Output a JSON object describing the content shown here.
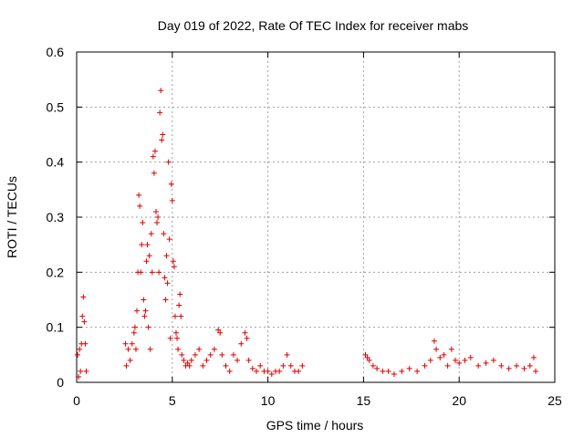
{
  "chart_data": {
    "type": "scatter",
    "title": "Day 019 of 2022, Rate Of TEC Index for receiver mabs",
    "xlabel": "GPS time / hours",
    "ylabel": "ROTI / TECUs",
    "xlim": [
      0,
      25
    ],
    "ylim": [
      0,
      0.6
    ],
    "xticks": [
      0,
      5,
      10,
      15,
      20,
      25
    ],
    "yticks": [
      0,
      0.1,
      0.2,
      0.3,
      0.4,
      0.5,
      0.6
    ],
    "xtick_labels": [
      "0",
      "5",
      "10",
      "15",
      "20",
      "25"
    ],
    "ytick_labels": [
      "0",
      "0.1",
      "0.2",
      "0.3",
      "0.4",
      "0.5",
      "0.6"
    ],
    "grid": true,
    "marker": "+",
    "color": "#e00000",
    "series": [
      {
        "name": "ROTI",
        "x": [
          0.05,
          0.1,
          0.15,
          0.2,
          0.25,
          0.3,
          0.35,
          0.4,
          0.45,
          0.5,
          2.55,
          2.6,
          2.7,
          2.8,
          2.9,
          3.0,
          3.05,
          3.1,
          3.15,
          3.2,
          3.25,
          3.3,
          3.35,
          3.4,
          3.45,
          3.5,
          3.55,
          3.6,
          3.65,
          3.7,
          3.75,
          3.8,
          3.85,
          3.9,
          3.95,
          4.0,
          4.05,
          4.1,
          4.15,
          4.2,
          4.25,
          4.3,
          4.35,
          4.4,
          4.45,
          4.5,
          4.55,
          4.6,
          4.65,
          4.7,
          4.75,
          4.8,
          4.85,
          4.9,
          4.95,
          5.0,
          5.05,
          5.1,
          5.15,
          5.2,
          5.25,
          5.3,
          5.35,
          5.4,
          5.45,
          5.5,
          5.6,
          5.7,
          5.8,
          5.9,
          6.0,
          6.2,
          6.4,
          6.6,
          6.8,
          7.0,
          7.2,
          7.4,
          7.5,
          7.6,
          7.8,
          8.0,
          8.2,
          8.4,
          8.6,
          8.8,
          8.9,
          9.0,
          9.2,
          9.4,
          9.6,
          9.8,
          10.0,
          10.2,
          10.4,
          10.6,
          10.8,
          11.0,
          11.2,
          11.4,
          11.6,
          11.8,
          15.1,
          15.2,
          15.3,
          15.5,
          15.7,
          16.0,
          16.3,
          16.6,
          17.0,
          17.4,
          17.8,
          18.2,
          18.5,
          18.7,
          18.8,
          19.0,
          19.2,
          19.4,
          19.6,
          19.8,
          20.0,
          20.3,
          20.6,
          21.0,
          21.4,
          21.8,
          22.2,
          22.6,
          23.0,
          23.4,
          23.7,
          23.9,
          24.0
        ],
        "y": [
          0.05,
          0.01,
          0.06,
          0.02,
          0.07,
          0.12,
          0.155,
          0.11,
          0.07,
          0.02,
          0.07,
          0.03,
          0.06,
          0.04,
          0.07,
          0.09,
          0.1,
          0.06,
          0.13,
          0.2,
          0.34,
          0.32,
          0.2,
          0.25,
          0.29,
          0.15,
          0.12,
          0.13,
          0.22,
          0.25,
          0.1,
          0.23,
          0.06,
          0.27,
          0.2,
          0.41,
          0.38,
          0.42,
          0.31,
          0.29,
          0.3,
          0.2,
          0.49,
          0.53,
          0.44,
          0.45,
          0.27,
          0.19,
          0.15,
          0.23,
          0.18,
          0.4,
          0.26,
          0.08,
          0.36,
          0.33,
          0.22,
          0.21,
          0.12,
          0.09,
          0.08,
          0.06,
          0.14,
          0.16,
          0.12,
          0.05,
          0.04,
          0.03,
          0.035,
          0.03,
          0.04,
          0.05,
          0.06,
          0.03,
          0.04,
          0.05,
          0.06,
          0.095,
          0.09,
          0.05,
          0.03,
          0.02,
          0.05,
          0.04,
          0.07,
          0.09,
          0.08,
          0.04,
          0.025,
          0.02,
          0.03,
          0.02,
          0.02,
          0.015,
          0.02,
          0.02,
          0.03,
          0.05,
          0.03,
          0.02,
          0.02,
          0.03,
          0.05,
          0.045,
          0.04,
          0.03,
          0.025,
          0.02,
          0.02,
          0.015,
          0.02,
          0.025,
          0.02,
          0.03,
          0.04,
          0.075,
          0.06,
          0.045,
          0.05,
          0.03,
          0.06,
          0.04,
          0.035,
          0.04,
          0.045,
          0.03,
          0.035,
          0.04,
          0.03,
          0.025,
          0.03,
          0.025,
          0.03,
          0.045,
          0.02
        ]
      }
    ]
  }
}
